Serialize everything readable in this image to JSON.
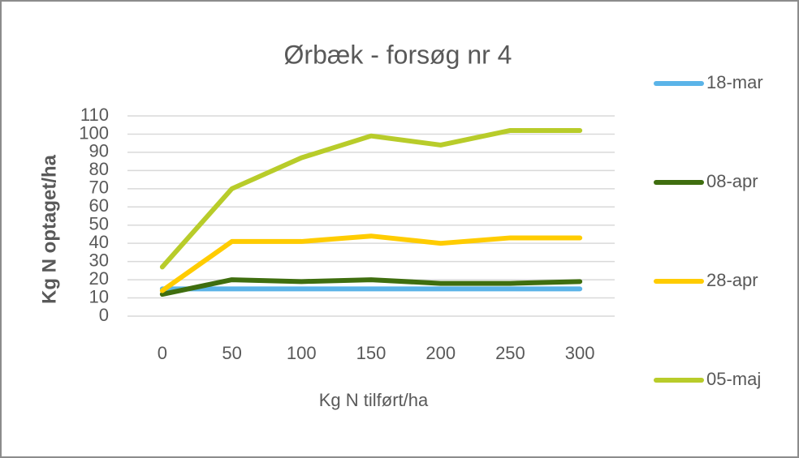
{
  "chart_data": {
    "type": "line",
    "title": "Ørbæk - forsøg nr 4",
    "x_label": "Kg N tilført/ha",
    "y_label": "Kg N optaget/ha",
    "categories": [
      "0",
      "50",
      "100",
      "150",
      "200",
      "250",
      "300"
    ],
    "series": [
      {
        "name": "18-mar",
        "color": "#5bb4e8",
        "values": [
          15,
          15,
          15,
          15,
          15,
          15,
          15
        ]
      },
      {
        "name": "08-apr",
        "color": "#3f6e0f",
        "values": [
          12,
          20,
          19,
          20,
          18,
          18,
          19
        ]
      },
      {
        "name": "28-apr",
        "color": "#ffcc00",
        "values": [
          14,
          41,
          41,
          44,
          40,
          43,
          43
        ]
      },
      {
        "name": "05-maj",
        "color": "#b8cc2a",
        "values": [
          27,
          70,
          87,
          99,
          94,
          102,
          102
        ]
      }
    ],
    "ylim": [
      0,
      110
    ],
    "yticks": [
      0,
      10,
      20,
      30,
      40,
      50,
      60,
      70,
      80,
      90,
      100,
      110
    ],
    "grid": true,
    "legend": "right"
  }
}
